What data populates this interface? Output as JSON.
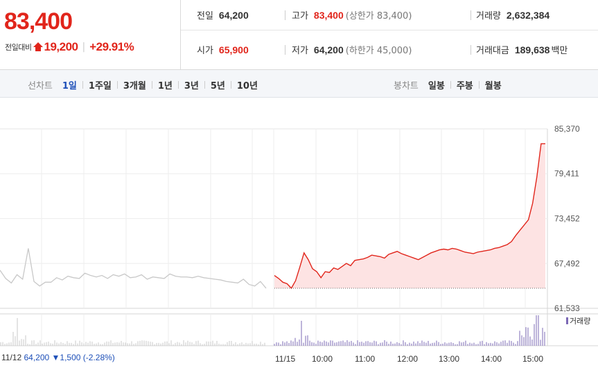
{
  "summary": {
    "price": "83,400",
    "change_label": "전일대비",
    "change_amount": "19,200",
    "change_sep": "|",
    "change_pct": "+29.91%",
    "prev_close_label": "전일",
    "prev_close": "64,200",
    "high_label": "고가",
    "high": "83,400",
    "upper_limit": "(상한가 83,400)",
    "volume_label": "거래량",
    "volume": "2,632,384",
    "open_label": "시가",
    "open": "65,900",
    "low_label": "저가",
    "low": "64,200",
    "lower_limit": "(하한가 45,000)",
    "value_label": "거래대금",
    "value": "189,638",
    "value_unit": "백만"
  },
  "tabs": {
    "line_chart_label": "선차트",
    "line_items": [
      "1일",
      "1주일",
      "3개월",
      "1년",
      "3년",
      "5년",
      "10년"
    ],
    "active": "1일",
    "candle_label": "봉차트",
    "candle_items": [
      "일봉",
      "주봉",
      "월봉"
    ]
  },
  "colors": {
    "up": "#e1251b",
    "down": "#1d4fb8",
    "prev_line": "#c8c8c8",
    "today_fill": "#fde3e3",
    "volume_today": "#7b68b5",
    "volume_prev": "#c8c8c8"
  },
  "chart_data": {
    "type": "line",
    "y_ticks": [
      "85,370",
      "79,411",
      "73,452",
      "67,492",
      "61,533"
    ],
    "ylim": [
      61533,
      85370
    ],
    "x_ticks": [
      "11/12",
      "11/15",
      "10:00",
      "11:00",
      "12:00",
      "13:00",
      "14:00",
      "15:00"
    ],
    "volume_legend": "거래량",
    "prev_day": {
      "date": "11/12",
      "close": "64,200",
      "change": "▼1,500",
      "pct": "(-2.28%)",
      "series": [
        66600,
        65500,
        64900,
        66000,
        65400,
        69500,
        65100,
        64500,
        65000,
        65000,
        65600,
        65300,
        65800,
        65600,
        65500,
        66200,
        65900,
        65700,
        65900,
        65500,
        66000,
        65800,
        66100,
        65600,
        65700,
        66000,
        65400,
        65700,
        65600,
        65500,
        66100,
        65800,
        65700,
        65700,
        65600,
        65800,
        65600,
        65500,
        65400,
        65300,
        65100,
        65000,
        64900,
        65400,
        64700,
        64500,
        65100,
        64200
      ]
    },
    "today": {
      "date": "11/15",
      "base": 64200,
      "series": [
        65900,
        65500,
        65000,
        64800,
        64200,
        65200,
        67000,
        68900,
        68000,
        66800,
        66400,
        65600,
        66400,
        66300,
        66900,
        66700,
        67100,
        67500,
        67200,
        67900,
        68000,
        68100,
        68300,
        68600,
        68500,
        68400,
        68200,
        68700,
        68900,
        69100,
        68800,
        68600,
        68400,
        68200,
        68000,
        68300,
        68600,
        68900,
        69100,
        69300,
        69400,
        69300,
        69500,
        69400,
        69200,
        69000,
        68900,
        68800,
        69000,
        69100,
        69200,
        69300,
        69500,
        69600,
        69800,
        70000,
        70400,
        71200,
        71900,
        72600,
        73300,
        75500,
        79000,
        83400,
        83400
      ]
    }
  }
}
